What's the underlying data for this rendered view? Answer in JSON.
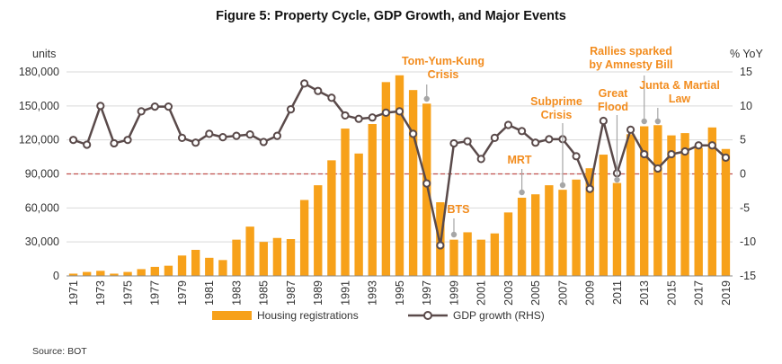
{
  "chart_data": {
    "type": "bar+line",
    "title": "Figure 5: Property Cycle, GDP Growth, and Major Events",
    "left_axis_unit": "units",
    "right_axis_unit": "% YoY",
    "source": "Source: BOT",
    "years": [
      1971,
      1972,
      1973,
      1974,
      1975,
      1976,
      1977,
      1978,
      1979,
      1980,
      1981,
      1982,
      1983,
      1984,
      1985,
      1986,
      1987,
      1988,
      1989,
      1990,
      1991,
      1992,
      1993,
      1994,
      1995,
      1996,
      1997,
      1998,
      1999,
      2000,
      2001,
      2002,
      2003,
      2004,
      2005,
      2006,
      2007,
      2008,
      2009,
      2010,
      2011,
      2012,
      2013,
      2014,
      2015,
      2016,
      2017,
      2018,
      2019
    ],
    "x_tick_labels": [
      "1971",
      "1973",
      "1975",
      "1977",
      "1979",
      "1981",
      "1983",
      "1985",
      "1987",
      "1989",
      "1991",
      "1993",
      "1995",
      "1997",
      "1999",
      "2001",
      "2003",
      "2005",
      "2007",
      "2009",
      "2011",
      "2013",
      "2015",
      "2017",
      "2019"
    ],
    "y_left_ticks": [
      "0",
      "30,000",
      "60,000",
      "90,000",
      "120,000",
      "150,000",
      "180,000"
    ],
    "y_left_range": [
      0,
      180000
    ],
    "y_right_ticks": [
      "-15",
      "-10",
      "-5",
      "0",
      "5",
      "10",
      "15"
    ],
    "y_right_range": [
      -15,
      15
    ],
    "series": [
      {
        "name": "Housing registrations",
        "axis": "left",
        "kind": "bar",
        "color": "#f7a11a",
        "values": [
          2000,
          3500,
          4500,
          2000,
          3500,
          6000,
          8000,
          9000,
          18000,
          23000,
          16000,
          14000,
          32000,
          43500,
          30000,
          33500,
          32500,
          67000,
          80000,
          102000,
          130000,
          108000,
          134000,
          171000,
          177000,
          164000,
          152000,
          65000,
          32000,
          38500,
          32000,
          37500,
          56000,
          69000,
          72000,
          80000,
          76000,
          85000,
          95000,
          107000,
          82000,
          125000,
          132000,
          133000,
          124000,
          126000,
          113000,
          131000,
          112000
        ]
      },
      {
        "name": "GDP growth (RHS)",
        "axis": "right",
        "kind": "line",
        "color": "#5a4a4a",
        "values": [
          5.0,
          4.3,
          10.0,
          4.5,
          5.0,
          9.2,
          9.9,
          9.9,
          5.3,
          4.6,
          5.9,
          5.4,
          5.6,
          5.8,
          4.7,
          5.6,
          9.5,
          13.3,
          12.2,
          11.2,
          8.6,
          8.1,
          8.3,
          9.0,
          9.2,
          5.9,
          -1.4,
          -10.5,
          4.5,
          4.8,
          2.2,
          5.3,
          7.2,
          6.3,
          4.6,
          5.1,
          5.1,
          2.6,
          -2.2,
          7.8,
          0.1,
          6.5,
          2.9,
          0.8,
          2.9,
          3.3,
          4.2,
          4.2,
          2.4
        ]
      }
    ],
    "annotations": [
      {
        "text": [
          "Tom-Yum-Kung",
          "Crisis"
        ],
        "year": 1997
      },
      {
        "text": [
          "BTS"
        ],
        "year": 1999
      },
      {
        "text": [
          "MRT"
        ],
        "year": 2004
      },
      {
        "text": [
          "Subprime",
          "Crisis"
        ],
        "year": 2007
      },
      {
        "text": [
          "Great",
          "Flood"
        ],
        "year": 2011
      },
      {
        "text": [
          "Rallies sparked",
          "by Amnesty Bill"
        ],
        "year": 2013
      },
      {
        "text": [
          "Junta & Martial",
          "Law"
        ],
        "year": 2014
      }
    ],
    "zero_reference_line": "dashed",
    "legend_position": "bottom",
    "grid": "horizontal"
  },
  "colors": {
    "bar": "#f7a11a",
    "line": "#5a4a4a",
    "annotation": "#f28c1e",
    "marker_dot": "#a6a6a6",
    "grid": "#d9d9d9",
    "zero_line": "#c0504d"
  }
}
